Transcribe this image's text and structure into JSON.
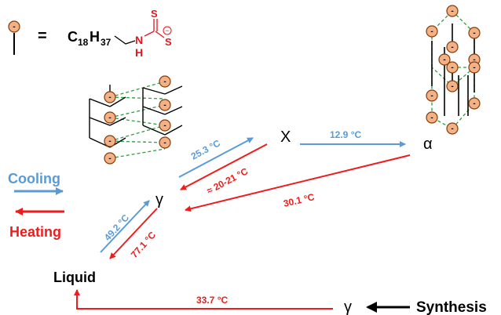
{
  "legend": {
    "equals": "=",
    "formula": {
      "c": "C",
      "c_sub": "18",
      "h": "H",
      "h_sub": "37"
    },
    "atom_s": "S",
    "atom_n": "N",
    "atom_h": "H",
    "charge_symbol": "−",
    "bead_sign": "-"
  },
  "phases": {
    "x": "X",
    "alpha": "α",
    "gamma": "γ",
    "gamma_bottom": "γ",
    "liquid": "Liquid"
  },
  "key": {
    "cooling": "Cooling",
    "heating": "Heating"
  },
  "synthesis": "Synthesis",
  "transitions": {
    "gamma_to_x": "25.3 °C",
    "x_to_gamma": "≈ 20-21 °C",
    "x_to_alpha": "12.9 °C",
    "alpha_to_gamma": "30.1 °C",
    "liquid_to_gamma": "49.2 °C",
    "gamma_to_liquid": "77.1 °C",
    "synth_to_liquid": "33.7 °C"
  },
  "colors": {
    "cooling": "#5b9bd5",
    "heating": "#ee1c1c",
    "bead_fill": "#f4b183",
    "bead_stroke": "#843c0c",
    "dashed": "#2e9e3e",
    "dithio": "#e8141c"
  }
}
